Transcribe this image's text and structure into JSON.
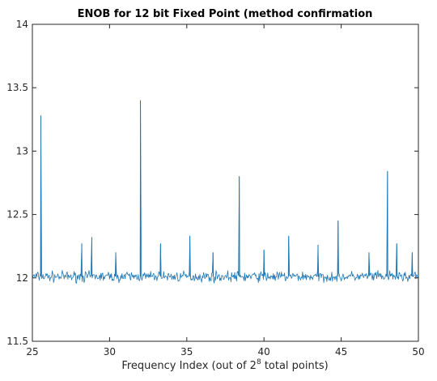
{
  "chart_data": {
    "type": "line",
    "title": "ENOB for 12 bit Fixed Point (method confirmation",
    "xlabel_prefix": "Frequency Index (out of 2",
    "xlabel_superscript": "8",
    "xlabel_suffix": " total points)",
    "ylabel": "",
    "xlim": [
      25,
      50
    ],
    "ylim": [
      11.5,
      14
    ],
    "xticks": [
      25,
      30,
      35,
      40,
      45,
      50
    ],
    "yticks": [
      11.5,
      12,
      12.5,
      13,
      13.5,
      14
    ],
    "xtick_labels": [
      "25",
      "30",
      "35",
      "40",
      "45",
      "50"
    ],
    "ytick_labels": [
      "11.5",
      "12",
      "12.5",
      "13",
      "13.5",
      "14"
    ],
    "grid": false,
    "legend": "none",
    "series": [
      {
        "color": "#1f77b4",
        "baseline": 12.01,
        "noise_amplitude": 0.06,
        "spikes": [
          {
            "x": 25.55,
            "y": 13.28
          },
          {
            "x": 28.2,
            "y": 12.27
          },
          {
            "x": 28.85,
            "y": 12.32
          },
          {
            "x": 30.4,
            "y": 12.2
          },
          {
            "x": 32.0,
            "y": 13.4
          },
          {
            "x": 33.3,
            "y": 12.27
          },
          {
            "x": 35.2,
            "y": 12.33
          },
          {
            "x": 36.7,
            "y": 12.2
          },
          {
            "x": 38.4,
            "y": 12.8
          },
          {
            "x": 40.0,
            "y": 12.22
          },
          {
            "x": 41.6,
            "y": 12.33
          },
          {
            "x": 43.5,
            "y": 12.26
          },
          {
            "x": 44.8,
            "y": 12.45
          },
          {
            "x": 46.8,
            "y": 12.2
          },
          {
            "x": 48.0,
            "y": 12.84
          },
          {
            "x": 48.6,
            "y": 12.27
          },
          {
            "x": 49.6,
            "y": 12.2
          }
        ]
      }
    ]
  }
}
